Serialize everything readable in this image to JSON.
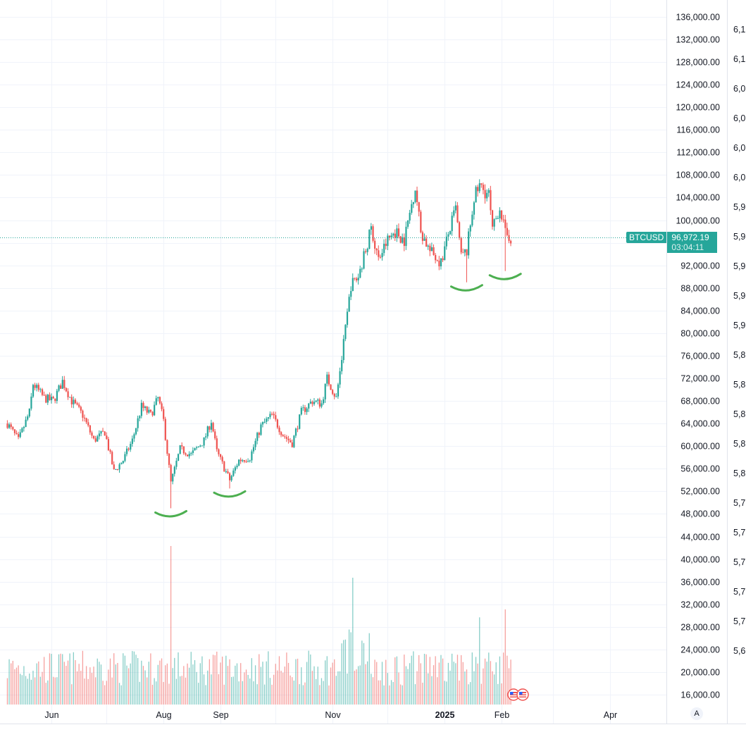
{
  "symbol": "BTCUSD",
  "last_price": "96,972.19",
  "countdown": "03:04:11",
  "colors": {
    "up": "#26a69a",
    "down": "#ef5350",
    "annotation": "#4caf50",
    "grid": "#f0f3fa"
  },
  "time_labels": [
    {
      "text": "Jun",
      "bold": false
    },
    {
      "text": "Aug",
      "bold": false
    },
    {
      "text": "Sep",
      "bold": false
    },
    {
      "text": "Nov",
      "bold": false
    },
    {
      "text": "2025",
      "bold": true
    },
    {
      "text": "Feb",
      "bold": false
    },
    {
      "text": "Apr",
      "bold": false
    }
  ],
  "secondary_labels": [
    "6,1",
    "6,1",
    "6,0",
    "6,0",
    "6,0",
    "6,0",
    "5,9",
    "5,9",
    "5,9",
    "5,9",
    "5,9",
    "5,8",
    "5,8",
    "5,8",
    "5,8",
    "5,8",
    "5,7",
    "5,7",
    "5,7",
    "5,7",
    "5,7",
    "5,6"
  ],
  "auto_label": "A",
  "chart_data": {
    "type": "candlestick",
    "ylim": [
      14000,
      138000
    ],
    "yticks": [
      16000,
      20000,
      24000,
      28000,
      32000,
      36000,
      40000,
      44000,
      48000,
      52000,
      56000,
      60000,
      64000,
      68000,
      72000,
      76000,
      80000,
      84000,
      88000,
      92000,
      96000,
      100000,
      104000,
      108000,
      112000,
      116000,
      120000,
      124000,
      128000,
      132000,
      136000
    ],
    "ytick_labels": [
      "16,000.00",
      "20,000.00",
      "24,000.00",
      "28,000.00",
      "32,000.00",
      "36,000.00",
      "40,000.00",
      "44,000.00",
      "48,000.00",
      "52,000.00",
      "56,000.00",
      "60,000.00",
      "64,000.00",
      "68,000.00",
      "72,000.00",
      "76,000.00",
      "80,000.00",
      "84,000.00",
      "88,000.00",
      "92,000.00",
      "",
      "100,000.00",
      "104,000.00",
      "108,000.00",
      "112,000.00",
      "116,000.00",
      "120,000.00",
      "124,000.00",
      "128,000.00",
      "132,000.00",
      "136,000.00"
    ],
    "last_price": 96972.19,
    "price_series": [
      [
        "2024-05-08",
        64000
      ],
      [
        "2024-05-14",
        61000
      ],
      [
        "2024-05-20",
        66000
      ],
      [
        "2024-05-22",
        71000
      ],
      [
        "2024-05-28",
        68500
      ],
      [
        "2024-06-02",
        68000
      ],
      [
        "2024-06-07",
        71500
      ],
      [
        "2024-06-12",
        68000
      ],
      [
        "2024-06-18",
        65500
      ],
      [
        "2024-06-24",
        61000
      ],
      [
        "2024-06-30",
        62500
      ],
      [
        "2024-07-05",
        55500
      ],
      [
        "2024-07-10",
        57500
      ],
      [
        "2024-07-15",
        61000
      ],
      [
        "2024-07-20",
        67000
      ],
      [
        "2024-07-25",
        65500
      ],
      [
        "2024-07-29",
        68500
      ],
      [
        "2024-08-01",
        64500
      ],
      [
        "2024-08-05",
        53500
      ],
      [
        "2024-08-10",
        59500
      ],
      [
        "2024-08-16",
        58500
      ],
      [
        "2024-08-23",
        61000
      ],
      [
        "2024-08-27",
        64500
      ],
      [
        "2024-08-30",
        59000
      ],
      [
        "2024-09-06",
        54000
      ],
      [
        "2024-09-11",
        57500
      ],
      [
        "2024-09-17",
        58000
      ],
      [
        "2024-09-23",
        63500
      ],
      [
        "2024-09-29",
        65500
      ],
      [
        "2024-10-05",
        62000
      ],
      [
        "2024-10-10",
        60500
      ],
      [
        "2024-10-15",
        66000
      ],
      [
        "2024-10-21",
        68000
      ],
      [
        "2024-10-26",
        67500
      ],
      [
        "2024-10-29",
        72000
      ],
      [
        "2024-11-03",
        68500
      ],
      [
        "2024-11-06",
        75500
      ],
      [
        "2024-11-11",
        88500
      ],
      [
        "2024-11-15",
        90000
      ],
      [
        "2024-11-22",
        98500
      ],
      [
        "2024-11-26",
        93000
      ],
      [
        "2024-12-01",
        96500
      ],
      [
        "2024-12-05",
        98000
      ],
      [
        "2024-12-10",
        96500
      ],
      [
        "2024-12-16",
        106000
      ],
      [
        "2024-12-19",
        98000
      ],
      [
        "2024-12-24",
        94500
      ],
      [
        "2024-12-30",
        92500
      ],
      [
        "2025-01-03",
        97500
      ],
      [
        "2025-01-07",
        102000
      ],
      [
        "2025-01-10",
        93500
      ],
      [
        "2025-01-13",
        94500
      ],
      [
        "2025-01-17",
        104000
      ],
      [
        "2025-01-20",
        106000
      ],
      [
        "2025-01-25",
        104500
      ],
      [
        "2025-01-27",
        98000
      ],
      [
        "2025-01-31",
        102500
      ],
      [
        "2025-02-03",
        97500
      ],
      [
        "2025-02-06",
        96972
      ]
    ],
    "lows_marked": [
      {
        "date": "2024-08-05",
        "price": 49000
      },
      {
        "date": "2024-09-06",
        "price": 52500
      },
      {
        "date": "2025-01-13",
        "price": 89000
      },
      {
        "date": "2025-02-03",
        "price": 91000
      }
    ],
    "volume_peaks": [
      {
        "date": "2024-08-05",
        "relative": 1.0
      },
      {
        "date": "2024-11-12",
        "relative": 0.8
      },
      {
        "date": "2025-01-20",
        "relative": 0.55
      },
      {
        "date": "2025-02-03",
        "relative": 0.6
      }
    ]
  }
}
